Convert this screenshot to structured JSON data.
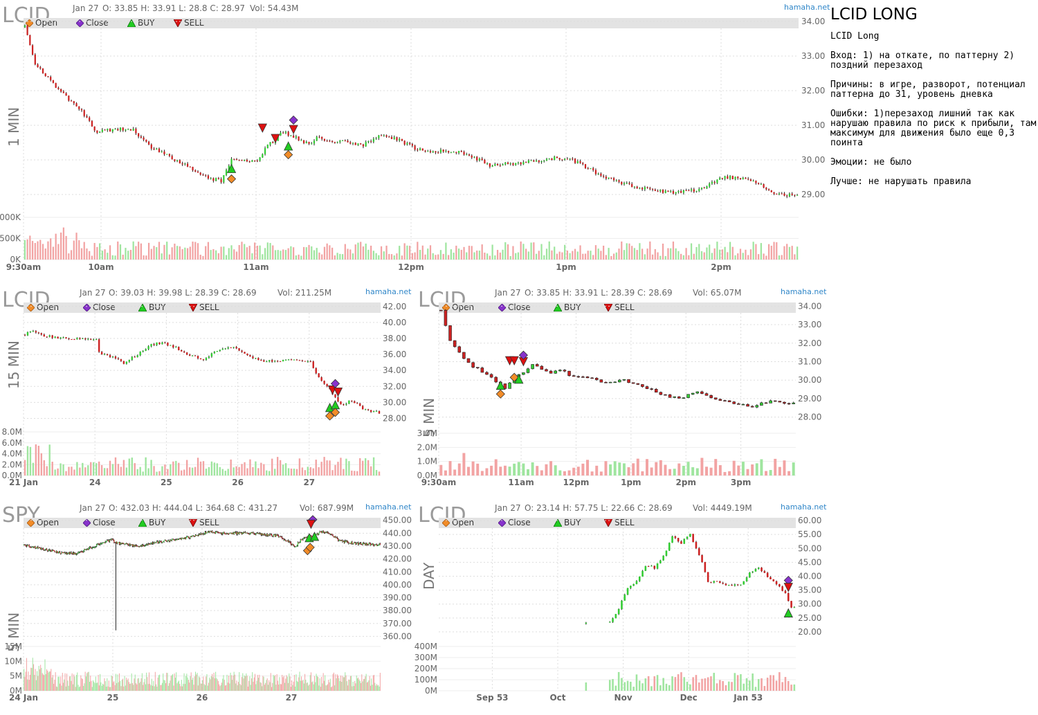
{
  "legend": {
    "open": "Open",
    "close": "Close",
    "buy": "BUY",
    "sell": "SELL"
  },
  "notes": {
    "title": "LCID LONG",
    "subtitle": "LCID Long",
    "entry": "Вход: 1) на откате, по паттерну 2)\nпоздний перезаход",
    "reasons": "Причины: в игре, разворот, потенциал\nпаттерна до 31, уровень дневка",
    "mistakes": "Ошибки: 1)перезаход лишний так как\nнарушаю правила по риск к прибыли, там\nмаксимум для движения было еще 0,3\nпоинта",
    "emotions": "Эмоции: не было",
    "better": "Лучше: не нарушать правила"
  },
  "colors": {
    "up": "#33cc33",
    "down": "#cc2222",
    "vol_up": "#9fe59f",
    "vol_down": "#f2a3a3",
    "open_marker": "#f28c28",
    "close_marker": "#8833cc",
    "buy_marker": "#22cc22",
    "sell_marker": "#dd1111",
    "source_link": "#2f86c8"
  },
  "chart_data": [
    {
      "id": "c1",
      "type": "candlestick",
      "ticker": "LCID",
      "timeframe": "1 MIN",
      "source": "hamaha.net",
      "header": {
        "date": "Jan 27",
        "ohlc": "O: 33.85 H: 33.91 L: 28.8 C: 28.97",
        "vol": "Vol: 54.43M"
      },
      "ylim": [
        28.5,
        34.1
      ],
      "yticks": [
        [
          "34.00",
          34
        ],
        [
          "33.00",
          33
        ],
        [
          "32.00",
          32
        ],
        [
          "31.00",
          31
        ],
        [
          "30.00",
          30
        ],
        [
          "29.00",
          29
        ]
      ],
      "vol_max": 1000,
      "vol_ticks": [
        [
          "000K",
          1000
        ],
        [
          "500K",
          500
        ],
        [
          "0K",
          0
        ]
      ],
      "xticks": [
        [
          "9:30am",
          0
        ],
        [
          "10am",
          30
        ],
        [
          "11am",
          90
        ],
        [
          "12pm",
          150
        ],
        [
          "1pm",
          210
        ],
        [
          "2pm",
          270
        ]
      ],
      "n": 300,
      "path": [
        [
          0,
          33.85
        ],
        [
          4,
          32.8
        ],
        [
          12,
          32.1
        ],
        [
          22,
          31.4
        ],
        [
          28,
          30.8
        ],
        [
          36,
          30.9
        ],
        [
          42,
          30.85
        ],
        [
          48,
          30.4
        ],
        [
          56,
          30.1
        ],
        [
          62,
          29.85
        ],
        [
          70,
          29.5
        ],
        [
          76,
          29.4
        ],
        [
          80,
          30.0
        ],
        [
          86,
          29.95
        ],
        [
          90,
          30.0
        ],
        [
          94,
          30.4
        ],
        [
          100,
          30.8
        ],
        [
          106,
          30.6
        ],
        [
          110,
          30.45
        ],
        [
          114,
          30.7
        ],
        [
          118,
          30.5
        ],
        [
          124,
          30.55
        ],
        [
          130,
          30.4
        ],
        [
          138,
          30.7
        ],
        [
          144,
          30.6
        ],
        [
          152,
          30.3
        ],
        [
          160,
          30.25
        ],
        [
          170,
          30.2
        ],
        [
          180,
          29.85
        ],
        [
          192,
          29.9
        ],
        [
          204,
          30.05
        ],
        [
          212,
          30.0
        ],
        [
          222,
          29.6
        ],
        [
          232,
          29.3
        ],
        [
          242,
          29.15
        ],
        [
          252,
          29.05
        ],
        [
          262,
          29.15
        ],
        [
          270,
          29.5
        ],
        [
          280,
          29.45
        ],
        [
          290,
          29.05
        ],
        [
          300,
          28.95
        ]
      ],
      "markers": [
        {
          "kind": "buy",
          "i": 80,
          "price": 29.75
        },
        {
          "kind": "open",
          "i": 80,
          "price": 29.45
        },
        {
          "kind": "sell",
          "i": 92,
          "price": 30.92
        },
        {
          "kind": "sell",
          "i": 97,
          "price": 30.62
        },
        {
          "kind": "buy",
          "i": 102,
          "price": 30.4
        },
        {
          "kind": "open",
          "i": 102,
          "price": 30.15
        },
        {
          "kind": "sell",
          "i": 104,
          "price": 30.88
        },
        {
          "kind": "close",
          "i": 104,
          "price": 31.15
        }
      ]
    },
    {
      "id": "c2",
      "type": "candlestick",
      "ticker": "LCID",
      "timeframe": "15 MIN",
      "source": "hamaha.net",
      "header": {
        "date": "Jan 27",
        "ohlc": "O: 39.03 H: 39.98 L: 28.39 C: 28.69",
        "vol": "Vol: 211.25M"
      },
      "ylim": [
        27.0,
        42.5
      ],
      "yticks": [
        [
          "42.00",
          42
        ],
        [
          "40.00",
          40
        ],
        [
          "38.00",
          38
        ],
        [
          "36.00",
          36
        ],
        [
          "34.00",
          34
        ],
        [
          "32.00",
          32
        ],
        [
          "30.00",
          30
        ],
        [
          "28.00",
          28
        ]
      ],
      "vol_max": 8,
      "vol_ticks": [
        [
          "8.0M",
          8
        ],
        [
          "6.0M",
          6
        ],
        [
          "4.0M",
          4
        ],
        [
          "2.0M",
          2
        ],
        [
          "0.0M",
          0
        ]
      ],
      "xticks": [
        [
          "21 Jan",
          0
        ],
        [
          "24",
          26
        ],
        [
          "25",
          52
        ],
        [
          "26",
          78
        ],
        [
          "27",
          104
        ]
      ],
      "n": 130,
      "path": [
        [
          0,
          38.5
        ],
        [
          3,
          39.0
        ],
        [
          6,
          38.4
        ],
        [
          10,
          38.2
        ],
        [
          16,
          38.0
        ],
        [
          22,
          38.0
        ],
        [
          26,
          37.9
        ],
        [
          27,
          36.2
        ],
        [
          30,
          35.8
        ],
        [
          34,
          35.5
        ],
        [
          36,
          34.9
        ],
        [
          40,
          35.8
        ],
        [
          46,
          37.2
        ],
        [
          50,
          37.5
        ],
        [
          54,
          37.0
        ],
        [
          60,
          35.9
        ],
        [
          65,
          35.4
        ],
        [
          70,
          36.4
        ],
        [
          76,
          36.9
        ],
        [
          80,
          36.0
        ],
        [
          86,
          35.2
        ],
        [
          92,
          35.2
        ],
        [
          100,
          35.3
        ],
        [
          104,
          35.0
        ],
        [
          106,
          33.5
        ],
        [
          110,
          32.0
        ],
        [
          113,
          30.5
        ],
        [
          116,
          29.6
        ],
        [
          118,
          30.2
        ],
        [
          120,
          30.0
        ],
        [
          124,
          29.0
        ],
        [
          130,
          28.7
        ]
      ],
      "markers": [
        {
          "kind": "sell",
          "i": 112,
          "price": 31.55
        },
        {
          "kind": "close",
          "i": 113,
          "price": 32.35
        },
        {
          "kind": "sell",
          "i": 114,
          "price": 31.3
        },
        {
          "kind": "buy",
          "i": 111,
          "price": 29.35
        },
        {
          "kind": "buy",
          "i": 113,
          "price": 29.7
        },
        {
          "kind": "open",
          "i": 111,
          "price": 28.3
        },
        {
          "kind": "open",
          "i": 113,
          "price": 28.75
        }
      ]
    },
    {
      "id": "c3",
      "type": "candlestick",
      "ticker": "LCID",
      "timeframe": "5 MIN",
      "source": "hamaha.net",
      "header": {
        "date": "Jan 27",
        "ohlc": "O: 33.85 H: 33.91 L: 28.39 C: 28.69",
        "vol": "Vol: 65.07M"
      },
      "ylim": [
        27.5,
        34.2
      ],
      "yticks": [
        [
          "34.00",
          34
        ],
        [
          "33.00",
          33
        ],
        [
          "32.00",
          32
        ],
        [
          "31.00",
          31
        ],
        [
          "30.00",
          30
        ],
        [
          "29.00",
          29
        ],
        [
          "28.00",
          28
        ]
      ],
      "vol_max": 3,
      "vol_ticks": [
        [
          "3.0M",
          3
        ],
        [
          "2.0M",
          2
        ],
        [
          "1.0M",
          1
        ],
        [
          "0.0M",
          0
        ]
      ],
      "xticks": [
        [
          "9:30am",
          0
        ],
        [
          "11am",
          18
        ],
        [
          "12pm",
          30
        ],
        [
          "1pm",
          42
        ],
        [
          "2pm",
          54
        ],
        [
          "3pm",
          66
        ]
      ],
      "n": 78,
      "path": [
        [
          0,
          33.8
        ],
        [
          2,
          32.2
        ],
        [
          4,
          31.5
        ],
        [
          6,
          30.9
        ],
        [
          8,
          30.6
        ],
        [
          10,
          30.3
        ],
        [
          12,
          29.9
        ],
        [
          14,
          29.6
        ],
        [
          16,
          30.2
        ],
        [
          18,
          30.4
        ],
        [
          20,
          30.8
        ],
        [
          22,
          30.6
        ],
        [
          24,
          30.4
        ],
        [
          26,
          30.6
        ],
        [
          28,
          30.3
        ],
        [
          32,
          30.1
        ],
        [
          36,
          29.9
        ],
        [
          40,
          30.0
        ],
        [
          44,
          29.7
        ],
        [
          48,
          29.2
        ],
        [
          52,
          29.0
        ],
        [
          56,
          29.4
        ],
        [
          60,
          29.0
        ],
        [
          64,
          28.7
        ],
        [
          68,
          28.6
        ],
        [
          72,
          28.85
        ],
        [
          76,
          28.75
        ],
        [
          78,
          28.7
        ]
      ],
      "markers": [
        {
          "kind": "open",
          "i": 13,
          "price": 29.25
        },
        {
          "kind": "buy",
          "i": 13,
          "price": 29.72
        },
        {
          "kind": "sell",
          "i": 15,
          "price": 31.05
        },
        {
          "kind": "sell",
          "i": 16,
          "price": 31.05
        },
        {
          "kind": "open",
          "i": 16,
          "price": 30.15
        },
        {
          "kind": "buy",
          "i": 17,
          "price": 30.05
        },
        {
          "kind": "sell",
          "i": 18,
          "price": 31.0
        },
        {
          "kind": "close",
          "i": 18,
          "price": 31.35
        }
      ]
    },
    {
      "id": "c4",
      "type": "candlestick",
      "ticker": "SPY",
      "timeframe": "5 MIN",
      "source": "hamaha.net",
      "header": {
        "date": "Jan 27",
        "ohlc": "O: 432.03 H: 444.04 L: 364.68 C: 431.27",
        "vol": "Vol: 687.99M"
      },
      "ylim": [
        357,
        452
      ],
      "yticks": [
        [
          "450.00",
          450
        ],
        [
          "440.00",
          440
        ],
        [
          "430.00",
          430
        ],
        [
          "420.00",
          420
        ],
        [
          "410.00",
          410
        ],
        [
          "400.00",
          400
        ],
        [
          "390.00",
          390
        ],
        [
          "380.00",
          380
        ],
        [
          "370.00",
          370
        ],
        [
          "360.00",
          360
        ]
      ],
      "vol_max": 15,
      "vol_ticks": [
        [
          "15M",
          15
        ],
        [
          "10M",
          10
        ],
        [
          "5M",
          5
        ],
        [
          "0M",
          0
        ]
      ],
      "xticks": [
        [
          "24 Jan",
          0
        ],
        [
          "25",
          102
        ],
        [
          "26",
          204
        ],
        [
          "27",
          306
        ]
      ],
      "n": 408,
      "spike": {
        "i": 105,
        "low": 364.68
      },
      "path": [
        [
          0,
          431
        ],
        [
          20,
          428
        ],
        [
          40,
          425
        ],
        [
          60,
          424
        ],
        [
          80,
          430
        ],
        [
          100,
          435
        ],
        [
          104,
          433
        ],
        [
          110,
          432
        ],
        [
          130,
          430
        ],
        [
          160,
          434
        ],
        [
          190,
          437
        ],
        [
          210,
          441
        ],
        [
          230,
          440
        ],
        [
          260,
          440
        ],
        [
          290,
          438
        ],
        [
          300,
          434
        ],
        [
          310,
          430
        ],
        [
          320,
          437
        ],
        [
          330,
          438
        ],
        [
          340,
          441
        ],
        [
          350,
          440
        ],
        [
          360,
          434
        ],
        [
          380,
          432
        ],
        [
          408,
          431
        ]
      ],
      "markers": [
        {
          "kind": "close",
          "i": 330,
          "price": 450.5
        },
        {
          "kind": "sell",
          "i": 328,
          "price": 447.0
        },
        {
          "kind": "buy",
          "i": 326,
          "price": 436.5
        },
        {
          "kind": "buy",
          "i": 332,
          "price": 437.5
        },
        {
          "kind": "open",
          "i": 324,
          "price": 426.5
        },
        {
          "kind": "open",
          "i": 327,
          "price": 429.0
        }
      ]
    },
    {
      "id": "c5",
      "type": "candlestick",
      "ticker": "LCID",
      "timeframe": "DAY",
      "source": "hamaha.net",
      "header": {
        "date": "Jan 27",
        "ohlc": "O: 23.14 H: 57.75 L: 22.66 C: 28.69",
        "vol": "Vol: 4449.19M"
      },
      "ylim": [
        17,
        61
      ],
      "yticks": [
        [
          "60.00",
          60
        ],
        [
          "55.00",
          55
        ],
        [
          "50.00",
          50
        ],
        [
          "45.00",
          45
        ],
        [
          "40.00",
          40
        ],
        [
          "35.00",
          35
        ],
        [
          "30.00",
          30
        ],
        [
          "25.00",
          25
        ],
        [
          "20.00",
          20
        ]
      ],
      "vol_max": 400,
      "vol_ticks": [
        [
          "400M",
          400
        ],
        [
          "300M",
          300
        ],
        [
          "200M",
          200
        ],
        [
          "100M",
          100
        ],
        [
          "0M",
          0
        ]
      ],
      "xticks": [
        [
          "Sep 53",
          18
        ],
        [
          "Oct",
          40
        ],
        [
          "Nov",
          62
        ],
        [
          "Dec",
          84
        ],
        [
          "Jan 53",
          104
        ]
      ],
      "n": 120,
      "daily": true,
      "path": [
        [
          0,
          null
        ],
        [
          49,
          23.0
        ],
        [
          50,
          null
        ],
        [
          57,
          23.5
        ],
        [
          59,
          26
        ],
        [
          61,
          31
        ],
        [
          63,
          36
        ],
        [
          66,
          38
        ],
        [
          69,
          44
        ],
        [
          72,
          43
        ],
        [
          75,
          47
        ],
        [
          78,
          54
        ],
        [
          81,
          52
        ],
        [
          84,
          55
        ],
        [
          86,
          50
        ],
        [
          88,
          45
        ],
        [
          90,
          38
        ],
        [
          93,
          38
        ],
        [
          96,
          37
        ],
        [
          99,
          37
        ],
        [
          101,
          37
        ],
        [
          104,
          41
        ],
        [
          107,
          43
        ],
        [
          110,
          40
        ],
        [
          113,
          37
        ],
        [
          116,
          34
        ],
        [
          118,
          28.7
        ]
      ],
      "markers": [
        {
          "kind": "close",
          "i": 117,
          "price": 38.5
        },
        {
          "kind": "sell",
          "i": 117,
          "price": 36.0
        },
        {
          "kind": "buy",
          "i": 117,
          "price": 26.8
        }
      ]
    }
  ]
}
